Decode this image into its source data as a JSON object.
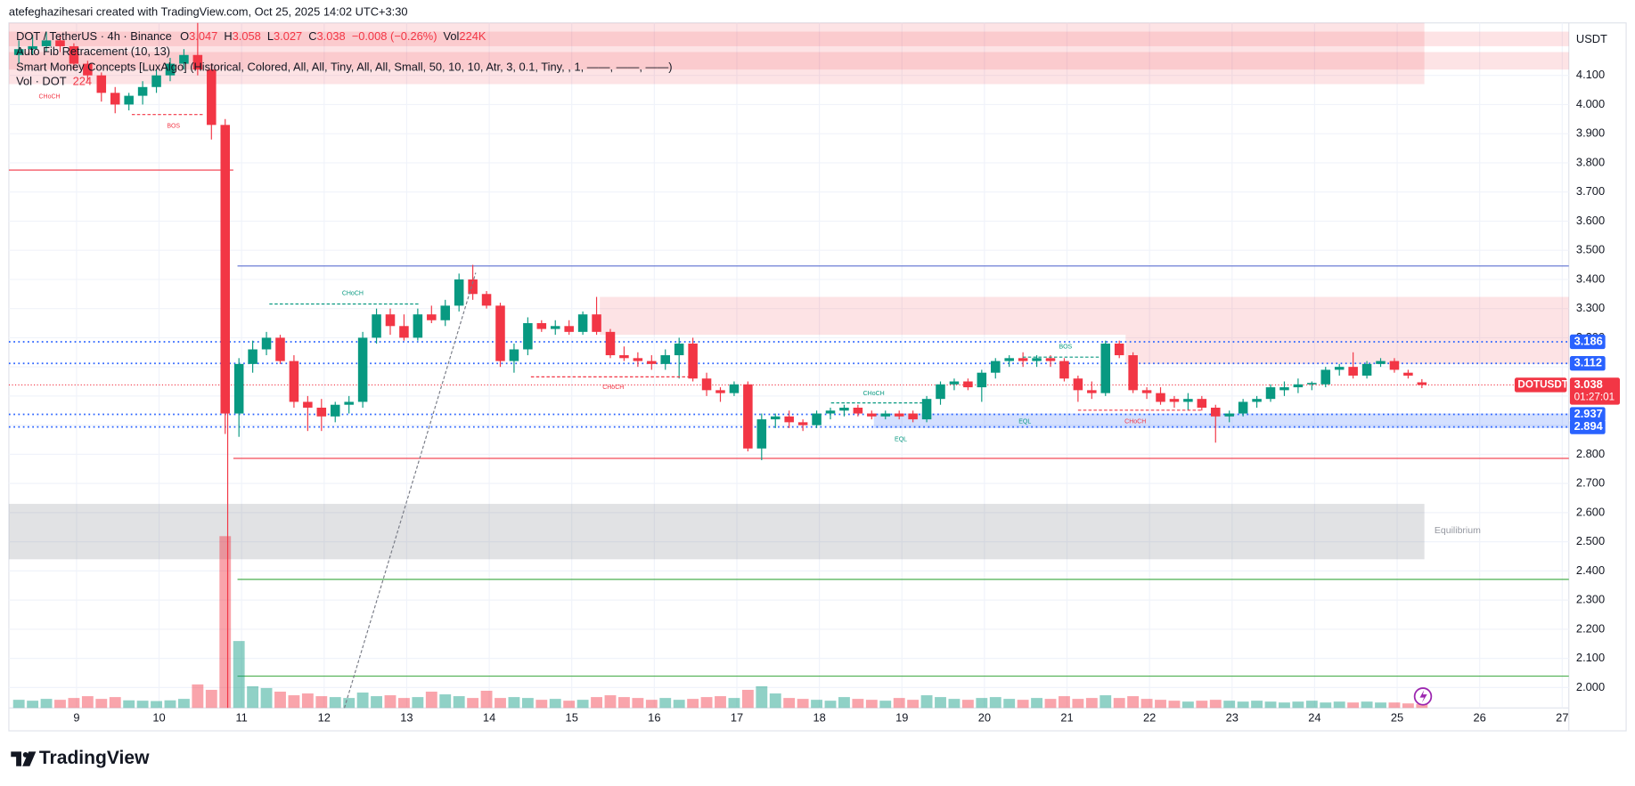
{
  "header": "atefeghazihesari created with TradingView.com, Oct 25, 2025 14:02 UTC+3:30",
  "footer": "TradingView",
  "chart_data": {
    "type": "candlestick",
    "symbol": "DOT / TetherUS · 4h · Binance",
    "currency": "USDT",
    "ohlc_labels": [
      "O",
      "H",
      "L",
      "C"
    ],
    "ohlc": [
      3.047,
      3.058,
      3.027,
      3.038
    ],
    "change": "−0.008 (−0.26%)",
    "vol_label": "Vol",
    "vol": "224K",
    "indicators": [
      "Auto Fib Retracement (10, 13)",
      "Smart Money Concepts [LuxAlgo] (Historical, Colored, All, All, Tiny, All, All, Small, 50, 10, 10, Atr, 3, 0.1, Tiny, , 1, ——, ——, ——)"
    ],
    "volume_title": "Vol · DOT",
    "up_color": "#089981",
    "down_color": "#f23645",
    "candles": [
      [
        4.17,
        4.22,
        4.14,
        4.19
      ],
      [
        4.19,
        4.24,
        4.17,
        4.2
      ],
      [
        4.2,
        4.25,
        4.18,
        4.22
      ],
      [
        4.22,
        4.24,
        4.18,
        4.2
      ],
      [
        4.2,
        4.21,
        4.12,
        4.14
      ],
      [
        4.14,
        4.15,
        4.08,
        4.1
      ],
      [
        4.1,
        4.11,
        4.01,
        4.04
      ],
      [
        4.04,
        4.06,
        3.97,
        4.0
      ],
      [
        4.0,
        4.04,
        3.98,
        4.03
      ],
      [
        4.03,
        4.08,
        4.0,
        4.06
      ],
      [
        4.06,
        4.12,
        4.04,
        4.1
      ],
      [
        4.1,
        4.16,
        4.08,
        4.14
      ],
      [
        4.14,
        4.19,
        4.12,
        4.17
      ],
      [
        4.17,
        4.28,
        4.1,
        4.12
      ],
      [
        4.12,
        4.14,
        3.88,
        3.93
      ],
      [
        3.93,
        3.95,
        2.87,
        2.94
      ],
      [
        2.94,
        3.13,
        2.86,
        3.11
      ],
      [
        3.11,
        3.19,
        3.08,
        3.16
      ],
      [
        3.16,
        3.22,
        3.14,
        3.2
      ],
      [
        3.2,
        3.21,
        3.11,
        3.12
      ],
      [
        3.12,
        3.14,
        2.96,
        2.98
      ],
      [
        2.98,
        3.0,
        2.88,
        2.96
      ],
      [
        2.96,
        2.99,
        2.88,
        2.93
      ],
      [
        2.93,
        2.98,
        2.91,
        2.97
      ],
      [
        2.97,
        3.0,
        2.94,
        2.98
      ],
      [
        2.98,
        3.22,
        2.96,
        3.2
      ],
      [
        3.2,
        3.3,
        3.18,
        3.28
      ],
      [
        3.28,
        3.3,
        3.21,
        3.24
      ],
      [
        3.24,
        3.28,
        3.19,
        3.2
      ],
      [
        3.2,
        3.3,
        3.19,
        3.28
      ],
      [
        3.28,
        3.31,
        3.25,
        3.26
      ],
      [
        3.26,
        3.33,
        3.24,
        3.31
      ],
      [
        3.31,
        3.42,
        3.29,
        3.4
      ],
      [
        3.4,
        3.45,
        3.33,
        3.35
      ],
      [
        3.35,
        3.36,
        3.3,
        3.31
      ],
      [
        3.31,
        3.32,
        3.1,
        3.12
      ],
      [
        3.12,
        3.18,
        3.08,
        3.16
      ],
      [
        3.16,
        3.27,
        3.14,
        3.25
      ],
      [
        3.25,
        3.26,
        3.22,
        3.23
      ],
      [
        3.23,
        3.26,
        3.21,
        3.24
      ],
      [
        3.24,
        3.26,
        3.21,
        3.22
      ],
      [
        3.22,
        3.29,
        3.21,
        3.28
      ],
      [
        3.28,
        3.34,
        3.21,
        3.22
      ],
      [
        3.22,
        3.23,
        3.13,
        3.14
      ],
      [
        3.14,
        3.17,
        3.12,
        3.13
      ],
      [
        3.13,
        3.15,
        3.1,
        3.12
      ],
      [
        3.12,
        3.14,
        3.09,
        3.11
      ],
      [
        3.11,
        3.16,
        3.09,
        3.14
      ],
      [
        3.14,
        3.2,
        3.06,
        3.18
      ],
      [
        3.18,
        3.2,
        3.05,
        3.06
      ],
      [
        3.06,
        3.08,
        3.0,
        3.02
      ],
      [
        3.02,
        3.03,
        2.98,
        3.01
      ],
      [
        3.01,
        3.05,
        3.0,
        3.04
      ],
      [
        3.04,
        3.05,
        2.81,
        2.82
      ],
      [
        2.82,
        2.94,
        2.78,
        2.92
      ],
      [
        2.92,
        2.94,
        2.89,
        2.93
      ],
      [
        2.93,
        2.95,
        2.89,
        2.91
      ],
      [
        2.91,
        2.92,
        2.88,
        2.9
      ],
      [
        2.9,
        2.95,
        2.89,
        2.94
      ],
      [
        2.94,
        2.96,
        2.92,
        2.95
      ],
      [
        2.95,
        2.97,
        2.93,
        2.96
      ],
      [
        2.96,
        2.97,
        2.93,
        2.94
      ],
      [
        2.94,
        2.95,
        2.92,
        2.93
      ],
      [
        2.93,
        2.95,
        2.92,
        2.94
      ],
      [
        2.94,
        2.95,
        2.92,
        2.93
      ],
      [
        2.94,
        2.95,
        2.91,
        2.92
      ],
      [
        2.92,
        3.0,
        2.91,
        2.99
      ],
      [
        2.99,
        3.05,
        2.97,
        3.04
      ],
      [
        3.04,
        3.06,
        3.02,
        3.05
      ],
      [
        3.05,
        3.06,
        3.02,
        3.03
      ],
      [
        3.03,
        3.09,
        2.98,
        3.08
      ],
      [
        3.08,
        3.13,
        3.06,
        3.12
      ],
      [
        3.12,
        3.14,
        3.1,
        3.13
      ],
      [
        3.13,
        3.15,
        3.1,
        3.12
      ],
      [
        3.12,
        3.14,
        3.1,
        3.13
      ],
      [
        3.13,
        3.14,
        3.1,
        3.12
      ],
      [
        3.12,
        3.13,
        3.05,
        3.06
      ],
      [
        3.06,
        3.07,
        2.98,
        3.02
      ],
      [
        3.02,
        3.05,
        2.99,
        3.01
      ],
      [
        3.01,
        3.19,
        3.0,
        3.18
      ],
      [
        3.18,
        3.19,
        3.13,
        3.14
      ],
      [
        3.14,
        3.15,
        3.01,
        3.02
      ],
      [
        3.02,
        3.03,
        2.99,
        3.01
      ],
      [
        3.01,
        3.03,
        2.97,
        2.98
      ],
      [
        2.99,
        3.0,
        2.96,
        2.98
      ],
      [
        2.98,
        3.01,
        2.95,
        2.99
      ],
      [
        2.99,
        3.0,
        2.95,
        2.96
      ],
      [
        2.96,
        2.97,
        2.84,
        2.93
      ],
      [
        2.93,
        2.95,
        2.91,
        2.94
      ],
      [
        2.94,
        2.99,
        2.93,
        2.98
      ],
      [
        2.98,
        3.0,
        2.96,
        2.99
      ],
      [
        2.99,
        3.04,
        2.98,
        3.03
      ],
      [
        3.02,
        3.05,
        3.0,
        3.03
      ],
      [
        3.03,
        3.06,
        3.01,
        3.04
      ],
      [
        3.04,
        3.05,
        3.02,
        3.045
      ],
      [
        3.04,
        3.1,
        3.03,
        3.09
      ],
      [
        3.09,
        3.11,
        3.07,
        3.1
      ],
      [
        3.1,
        3.15,
        3.06,
        3.07
      ],
      [
        3.07,
        3.12,
        3.06,
        3.11
      ],
      [
        3.11,
        3.13,
        3.1,
        3.12
      ],
      [
        3.12,
        3.13,
        3.08,
        3.09
      ],
      [
        3.08,
        3.09,
        3.06,
        3.07
      ],
      [
        3.047,
        3.058,
        3.027,
        3.038
      ]
    ],
    "volume": [
      450,
      400,
      500,
      450,
      550,
      650,
      500,
      600,
      420,
      400,
      380,
      420,
      500,
      1300,
      1000,
      9500,
      3700,
      1200,
      1100,
      900,
      700,
      800,
      650,
      600,
      550,
      850,
      650,
      700,
      550,
      600,
      900,
      750,
      650,
      550,
      950,
      550,
      600,
      550,
      450,
      500,
      400,
      450,
      600,
      700,
      600,
      550,
      450,
      550,
      450,
      500,
      600,
      650,
      550,
      1000,
      1200,
      800,
      550,
      500,
      450,
      400,
      600,
      500,
      450,
      400,
      550,
      450,
      700,
      600,
      500,
      450,
      550,
      600,
      500,
      450,
      550,
      500,
      650,
      500,
      550,
      700,
      550,
      650,
      500,
      450,
      400,
      350,
      400,
      450,
      400,
      350,
      400,
      350,
      300,
      350,
      400,
      300,
      350,
      300,
      350,
      300,
      300,
      250,
      224
    ],
    "xlim": [
      8.18,
      27.08
    ],
    "xticks": [
      9,
      10,
      11,
      12,
      13,
      14,
      15,
      16,
      17,
      18,
      19,
      20,
      21,
      22,
      23,
      24,
      25,
      26,
      27
    ],
    "ylim": [
      1.93,
      4.28
    ],
    "yticks": [
      {
        "value": 2.0,
        "label": "2.000"
      },
      {
        "value": 2.1,
        "label": "2.100"
      },
      {
        "value": 2.2,
        "label": "2.200"
      },
      {
        "value": 2.3,
        "label": "2.300"
      },
      {
        "value": 2.4,
        "label": "2.400"
      },
      {
        "value": 2.5,
        "label": "2.500"
      },
      {
        "value": 2.6,
        "label": "2.600"
      },
      {
        "value": 2.7,
        "label": "2.700"
      },
      {
        "value": 2.8,
        "label": "2.800"
      },
      {
        "value": 2.9,
        "label": "2.900"
      },
      {
        "value": 3.0,
        "label": "3.000"
      },
      {
        "value": 3.1,
        "label": "3.100"
      },
      {
        "value": 3.2,
        "label": "3.200"
      },
      {
        "value": 3.3,
        "label": "3.300"
      },
      {
        "value": 3.4,
        "label": "3.400"
      },
      {
        "value": 3.5,
        "label": "3.500"
      },
      {
        "value": 3.6,
        "label": "3.600"
      },
      {
        "value": 3.7,
        "label": "3.700"
      },
      {
        "value": 3.8,
        "label": "3.800"
      },
      {
        "value": 3.9,
        "label": "3.900"
      },
      {
        "value": 4.0,
        "label": "4.000"
      },
      {
        "value": 4.1,
        "label": "4.100"
      }
    ],
    "grid": true,
    "zones": [
      {
        "top": 4.28,
        "bottom": 4.07,
        "from": 8.18,
        "to": 25.33,
        "color": "#f23645",
        "opacity": 0.14
      },
      {
        "top": 4.25,
        "bottom": 4.2,
        "from": 8.18,
        "to": 27.08,
        "color": "#f23645",
        "opacity": 0.14
      },
      {
        "top": 4.18,
        "bottom": 4.12,
        "from": 8.18,
        "to": 27.08,
        "color": "#f23645",
        "opacity": 0.14
      },
      {
        "top": 2.63,
        "bottom": 2.44,
        "from": 8.18,
        "to": 25.33,
        "color": "#787b86",
        "opacity": 0.22
      },
      {
        "top": 3.34,
        "bottom": 3.21,
        "from": 15.34,
        "to": 27.08,
        "color": "#f23645",
        "opacity": 0.14
      },
      {
        "top": 3.21,
        "bottom": 3.11,
        "from": 21.71,
        "to": 27.08,
        "color": "#f23645",
        "opacity": 0.14
      },
      {
        "top": 2.94,
        "bottom": 2.89,
        "from": 18.66,
        "to": 27.08,
        "color": "#2962ff",
        "opacity": 0.2
      }
    ],
    "lines": [
      {
        "value": 3.775,
        "from": 8.18,
        "to": 10.9,
        "color": "#f23645"
      },
      {
        "value": 2.786,
        "from": 10.9,
        "to": 27.08,
        "color": "#f23645"
      },
      {
        "value": 3.446,
        "from": 10.95,
        "to": 27.08,
        "color": "#5b6fd0"
      },
      {
        "value": 2.371,
        "from": 10.95,
        "to": 27.08,
        "color": "#4caf50"
      },
      {
        "value": 2.039,
        "from": 10.95,
        "to": 27.08,
        "color": "#4caf50"
      }
    ],
    "levels": [
      {
        "value": 3.186,
        "color": "#2962ff"
      },
      {
        "value": 3.112,
        "color": "#2962ff"
      },
      {
        "value": 2.937,
        "color": "#2962ff"
      },
      {
        "value": 2.894,
        "color": "#2962ff"
      }
    ],
    "symbol_tag": "DOTUSDT",
    "countdown": "01:27:01",
    "annotations": [
      {
        "text": "CHoCH",
        "color": "#f23645"
      },
      {
        "text": "BOS",
        "color": "#f23645"
      },
      {
        "text": "CHoCH",
        "color": "#089981"
      },
      {
        "text": "CHoCH",
        "color": "#f23645"
      },
      {
        "text": "CHoCH",
        "color": "#089981"
      },
      {
        "text": "EQL",
        "color": "#089981"
      },
      {
        "text": "EQL",
        "color": "#089981"
      },
      {
        "text": "BOS",
        "color": "#089981"
      },
      {
        "text": "CHoCH",
        "color": "#f23645"
      }
    ],
    "zone_label": "Equilibrium"
  }
}
